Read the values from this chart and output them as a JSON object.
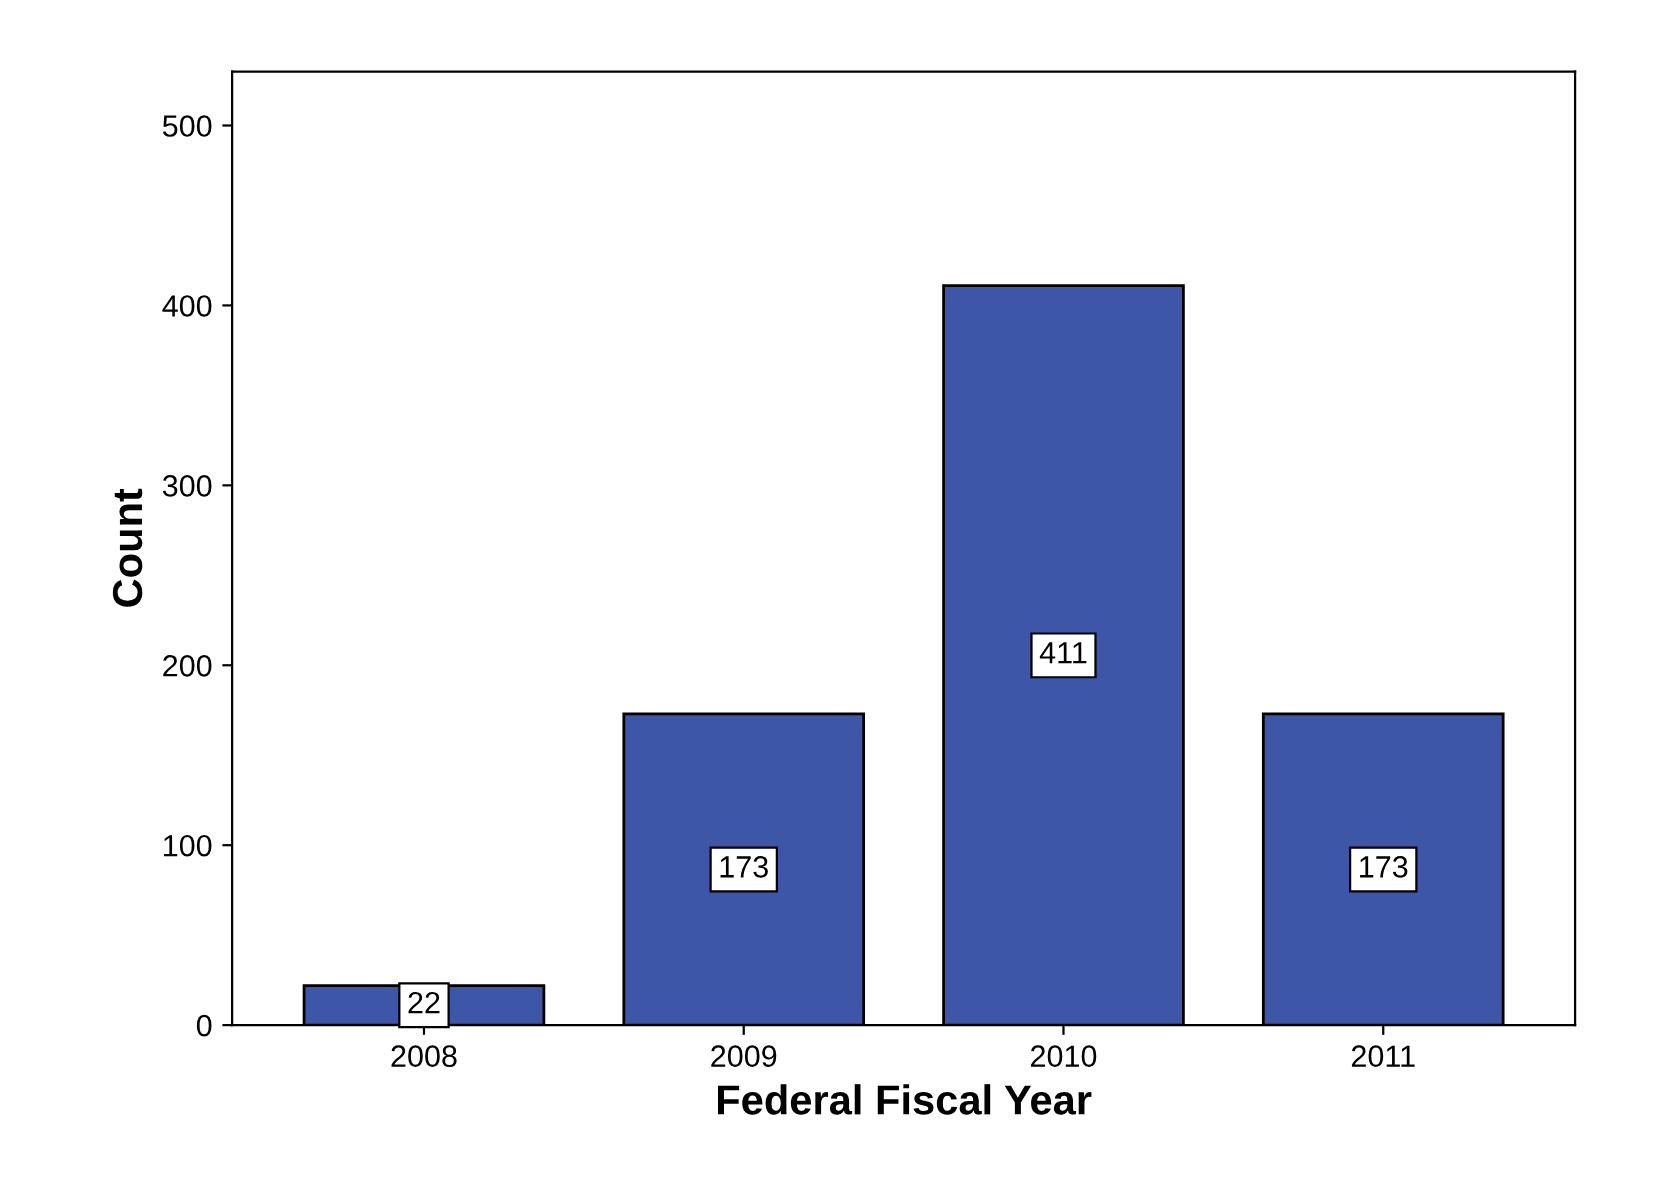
{
  "chart_data": {
    "type": "bar",
    "xlabel": "Federal Fiscal Year",
    "ylabel": "Count",
    "categories": [
      "2008",
      "2009",
      "2010",
      "2011"
    ],
    "values": [
      22,
      173,
      411,
      173
    ],
    "color": "#3e56a8",
    "ylim": [
      0,
      530
    ],
    "yticks": [
      0,
      100,
      200,
      300,
      400,
      500
    ],
    "data_labels": true,
    "grid": false,
    "legend": false
  }
}
